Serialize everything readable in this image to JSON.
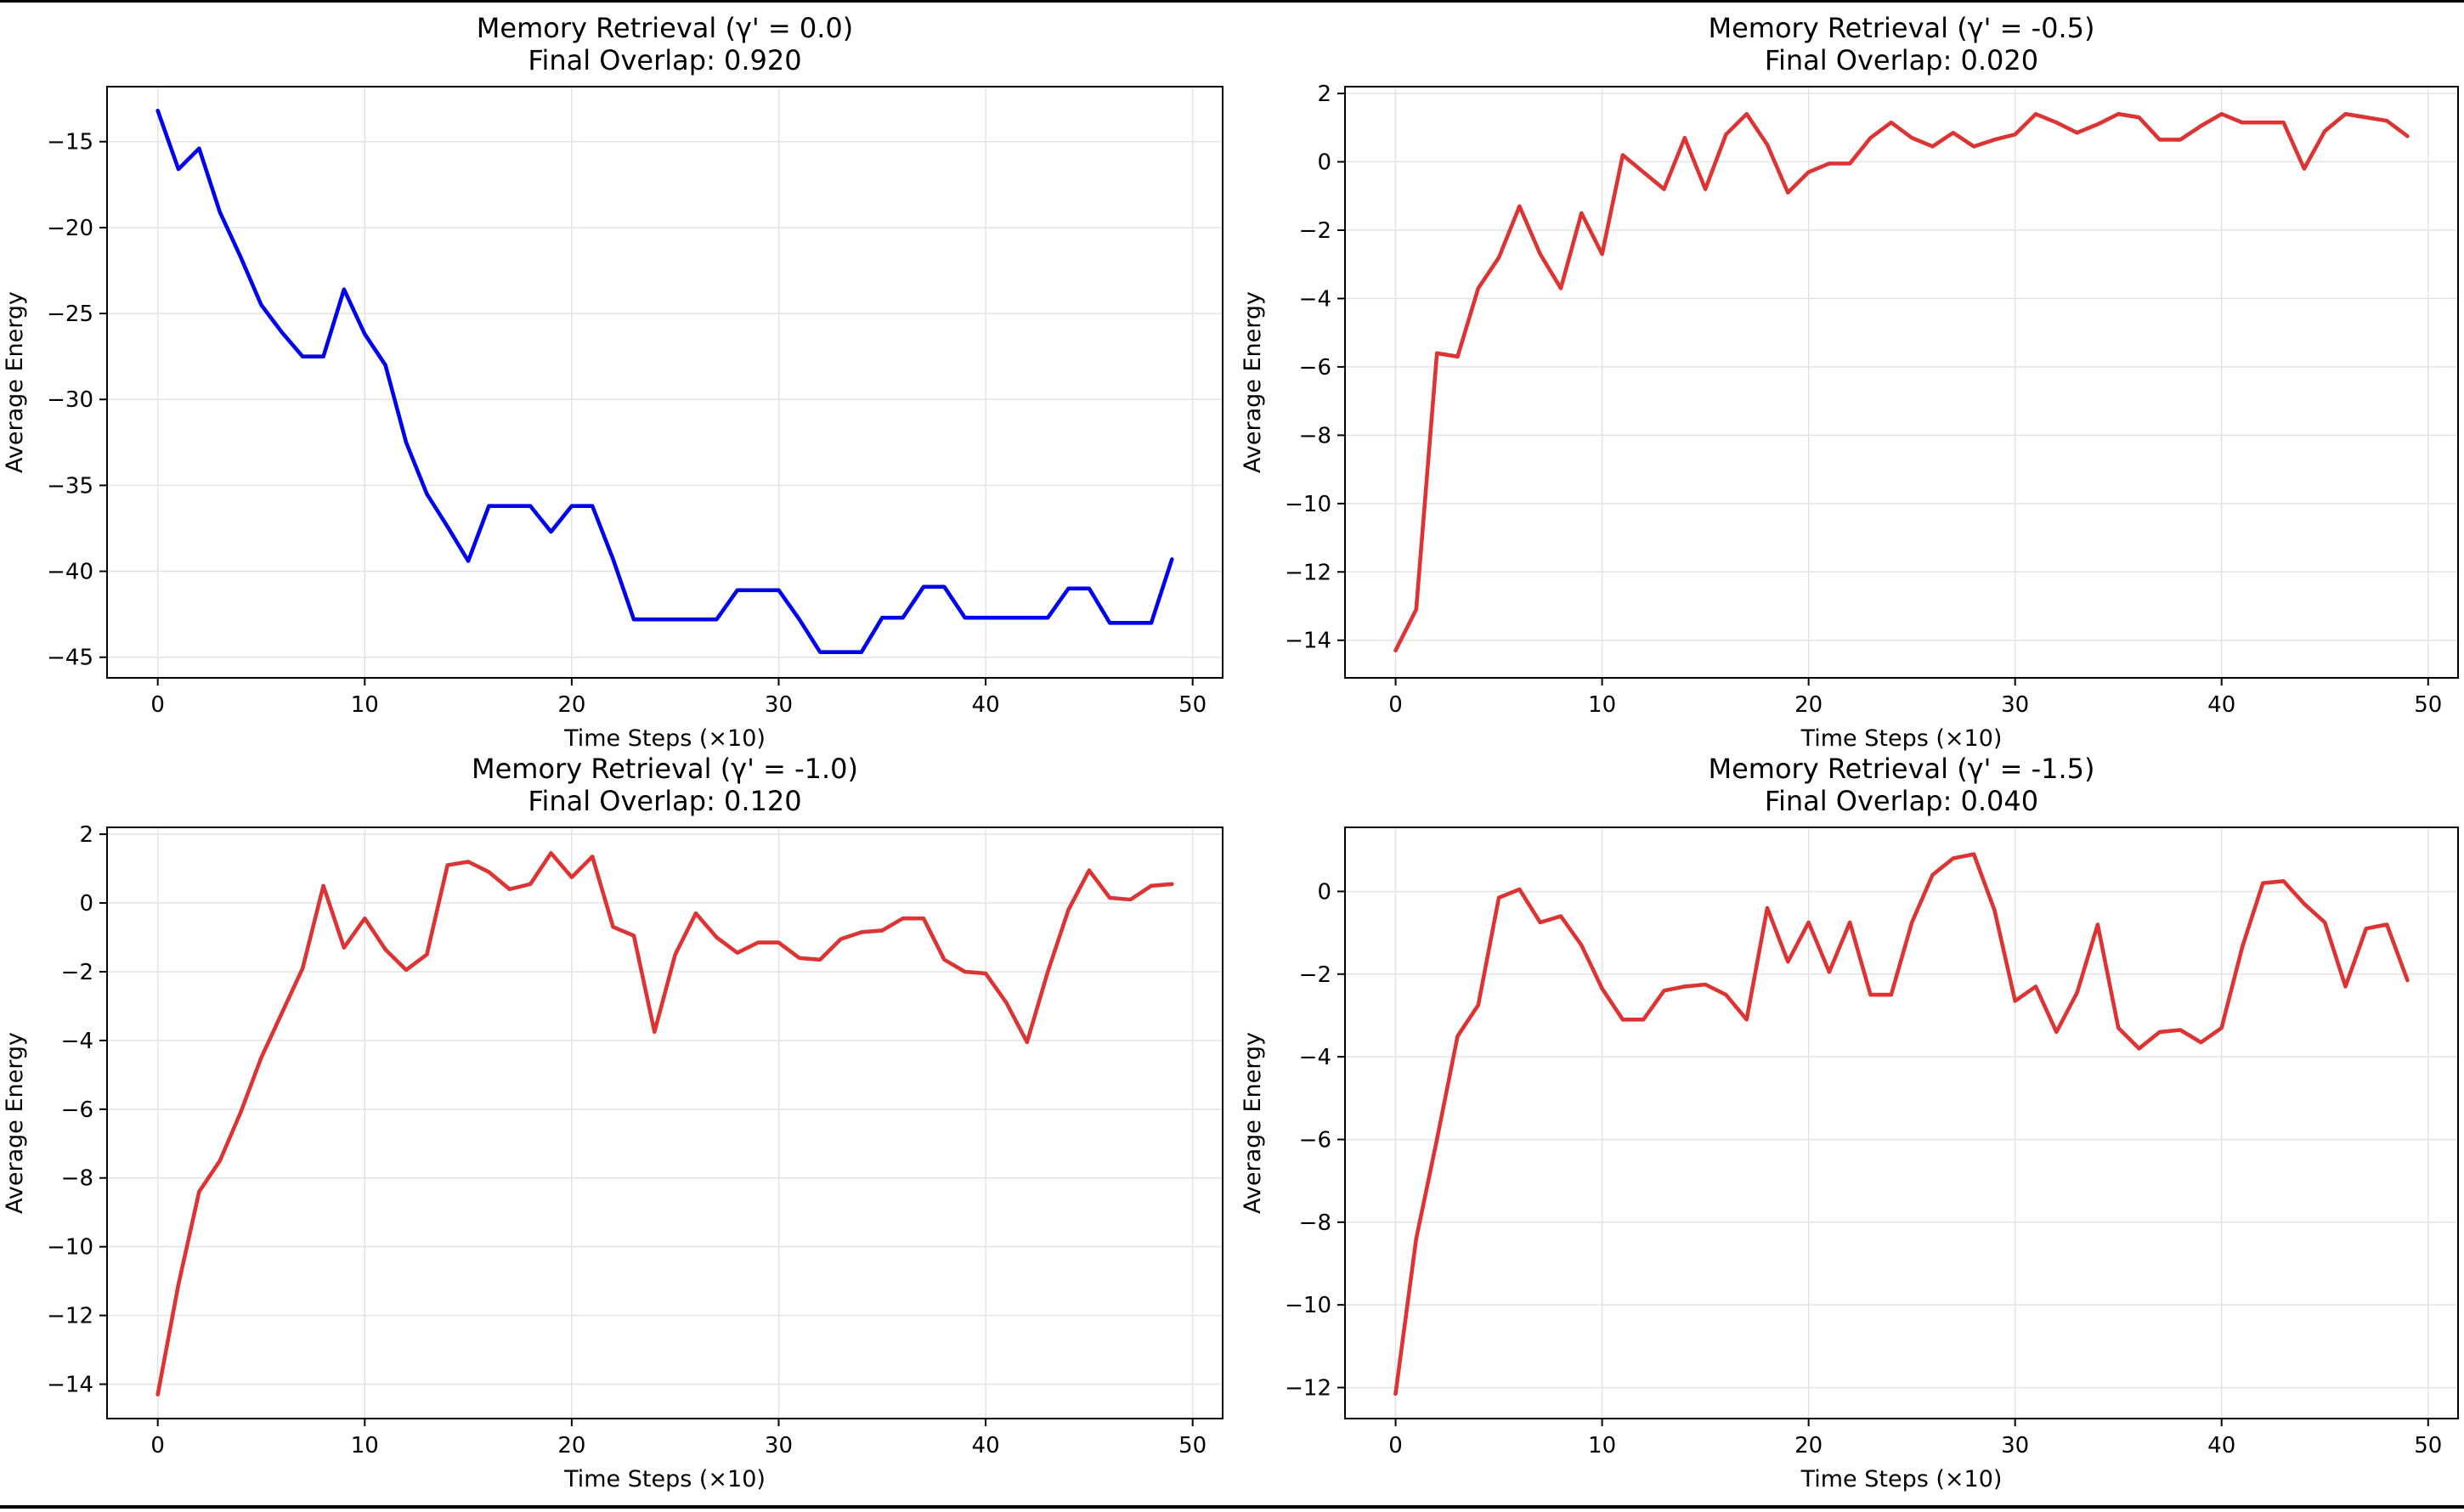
{
  "chart_data": [
    {
      "type": "line",
      "title": "Memory Retrieval (γ' = 0.0)",
      "subtitle": "Final Overlap: 0.920",
      "xlabel": "Time Steps (×10)",
      "ylabel": "Average Energy",
      "color": "#0000ee",
      "xlim": [
        -2.45,
        51.45
      ],
      "ylim": [
        -46.2,
        -11.8
      ],
      "xticks": [
        0,
        10,
        20,
        30,
        40,
        50
      ],
      "yticks": [
        -15,
        -20,
        -25,
        -30,
        -35,
        -40,
        -45
      ],
      "x": [
        0,
        1,
        2,
        3,
        4,
        5,
        6,
        7,
        8,
        9,
        10,
        11,
        12,
        13,
        14,
        15,
        16,
        17,
        18,
        19,
        20,
        21,
        22,
        23,
        24,
        25,
        26,
        27,
        28,
        29,
        30,
        31,
        32,
        33,
        34,
        35,
        36,
        37,
        38,
        39,
        40,
        41,
        42,
        43,
        44,
        45,
        46,
        47,
        48,
        49
      ],
      "y": [
        -13.2,
        -16.6,
        -15.4,
        -19.1,
        -21.7,
        -24.5,
        -26.1,
        -27.5,
        -27.5,
        -23.6,
        -26.2,
        -28.0,
        -32.5,
        -35.5,
        -37.4,
        -39.4,
        -36.2,
        -36.2,
        -36.2,
        -37.7,
        -36.2,
        -36.2,
        -39.3,
        -42.8,
        -42.8,
        -42.8,
        -42.8,
        -42.8,
        -41.1,
        -41.1,
        -41.1,
        -42.8,
        -44.7,
        -44.7,
        -44.7,
        -42.7,
        -42.7,
        -40.9,
        -40.9,
        -42.7,
        -42.7,
        -42.7,
        -42.7,
        -42.7,
        -41.0,
        -41.0,
        -43.0,
        -43.0,
        -43.0,
        -39.3
      ],
      "grid": true
    },
    {
      "type": "line",
      "title": "Memory Retrieval (γ' = -0.5)",
      "subtitle": "Final Overlap: 0.020",
      "xlabel": "Time Steps (×10)",
      "ylabel": "Average Energy",
      "color": "#dd3333",
      "xlim": [
        -2.45,
        51.45
      ],
      "ylim": [
        -15.1,
        2.2
      ],
      "xticks": [
        0,
        10,
        20,
        30,
        40,
        50
      ],
      "yticks": [
        2,
        0,
        -2,
        -4,
        -6,
        -8,
        -10,
        -12,
        -14
      ],
      "x": [
        0,
        1,
        2,
        3,
        4,
        5,
        6,
        7,
        8,
        9,
        10,
        11,
        12,
        13,
        14,
        15,
        16,
        17,
        18,
        19,
        20,
        21,
        22,
        23,
        24,
        25,
        26,
        27,
        28,
        29,
        30,
        31,
        32,
        33,
        34,
        35,
        36,
        37,
        38,
        39,
        40,
        41,
        42,
        43,
        44,
        45,
        46,
        47,
        48,
        49
      ],
      "y": [
        -14.3,
        -13.1,
        -5.6,
        -5.7,
        -3.7,
        -2.8,
        -1.3,
        -2.7,
        -3.7,
        -1.5,
        -2.7,
        0.2,
        -0.3,
        -0.8,
        0.7,
        -0.8,
        0.8,
        1.4,
        0.5,
        -0.9,
        -0.3,
        -0.05,
        -0.05,
        0.7,
        1.15,
        0.7,
        0.45,
        0.85,
        0.45,
        0.65,
        0.8,
        1.4,
        1.15,
        0.85,
        1.1,
        1.4,
        1.3,
        0.65,
        0.65,
        1.05,
        1.4,
        1.15,
        1.15,
        1.15,
        -0.2,
        0.9,
        1.4,
        1.3,
        1.2,
        0.75
      ],
      "grid": true
    },
    {
      "type": "line",
      "title": "Memory Retrieval (γ' = -1.0)",
      "subtitle": "Final Overlap: 0.120",
      "xlabel": "Time Steps (×10)",
      "ylabel": "Average Energy",
      "color": "#dd3333",
      "xlim": [
        -2.45,
        51.45
      ],
      "ylim": [
        -15.0,
        2.2
      ],
      "xticks": [
        0,
        10,
        20,
        30,
        40,
        50
      ],
      "yticks": [
        2,
        0,
        -2,
        -4,
        -6,
        -8,
        -10,
        -12,
        -14
      ],
      "x": [
        0,
        1,
        2,
        3,
        4,
        5,
        6,
        7,
        8,
        9,
        10,
        11,
        12,
        13,
        14,
        15,
        16,
        17,
        18,
        19,
        20,
        21,
        22,
        23,
        24,
        25,
        26,
        27,
        28,
        29,
        30,
        31,
        32,
        33,
        34,
        35,
        36,
        37,
        38,
        39,
        40,
        41,
        42,
        43,
        44,
        45,
        46,
        47,
        48,
        49
      ],
      "y": [
        -14.3,
        -11.1,
        -8.4,
        -7.5,
        -6.1,
        -4.5,
        -3.2,
        -1.9,
        0.5,
        -1.3,
        -0.45,
        -1.35,
        -1.95,
        -1.5,
        1.1,
        1.2,
        0.9,
        0.4,
        0.55,
        1.45,
        0.75,
        1.35,
        -0.7,
        -0.95,
        -3.75,
        -1.5,
        -0.3,
        -1.0,
        -1.45,
        -1.15,
        -1.15,
        -1.6,
        -1.65,
        -1.05,
        -0.85,
        -0.8,
        -0.45,
        -0.45,
        -1.65,
        -2.0,
        -2.05,
        -2.9,
        -4.05,
        -2.0,
        -0.2,
        0.95,
        0.15,
        0.1,
        0.5,
        0.55
      ],
      "grid": true
    },
    {
      "type": "line",
      "title": "Memory Retrieval (γ' = -1.5)",
      "subtitle": "Final Overlap: 0.040",
      "xlabel": "Time Steps (×10)",
      "ylabel": "Average Energy",
      "color": "#dd3333",
      "xlim": [
        -2.45,
        51.45
      ],
      "ylim": [
        -12.75,
        1.55
      ],
      "xticks": [
        0,
        10,
        20,
        30,
        40,
        50
      ],
      "yticks": [
        0,
        -2,
        -4,
        -6,
        -8,
        -10,
        -12
      ],
      "x": [
        0,
        1,
        2,
        3,
        4,
        5,
        6,
        7,
        8,
        9,
        10,
        11,
        12,
        13,
        14,
        15,
        16,
        17,
        18,
        19,
        20,
        21,
        22,
        23,
        24,
        25,
        26,
        27,
        28,
        29,
        30,
        31,
        32,
        33,
        34,
        35,
        36,
        37,
        38,
        39,
        40,
        41,
        42,
        43,
        44,
        45,
        46,
        47,
        48,
        49
      ],
      "y": [
        -12.15,
        -8.4,
        -6.0,
        -3.5,
        -2.75,
        -0.15,
        0.05,
        -0.75,
        -0.6,
        -1.3,
        -2.35,
        -3.1,
        -3.1,
        -2.4,
        -2.3,
        -2.25,
        -2.5,
        -3.1,
        -0.4,
        -1.7,
        -0.75,
        -1.95,
        -0.75,
        -2.5,
        -2.5,
        -0.75,
        0.4,
        0.8,
        0.9,
        -0.45,
        -2.65,
        -2.3,
        -3.4,
        -2.45,
        -0.8,
        -3.3,
        -3.8,
        -3.4,
        -3.35,
        -3.65,
        -3.3,
        -1.35,
        0.2,
        0.25,
        -0.3,
        -0.75,
        -2.3,
        -0.9,
        -0.8,
        -2.15
      ],
      "grid": true
    }
  ]
}
